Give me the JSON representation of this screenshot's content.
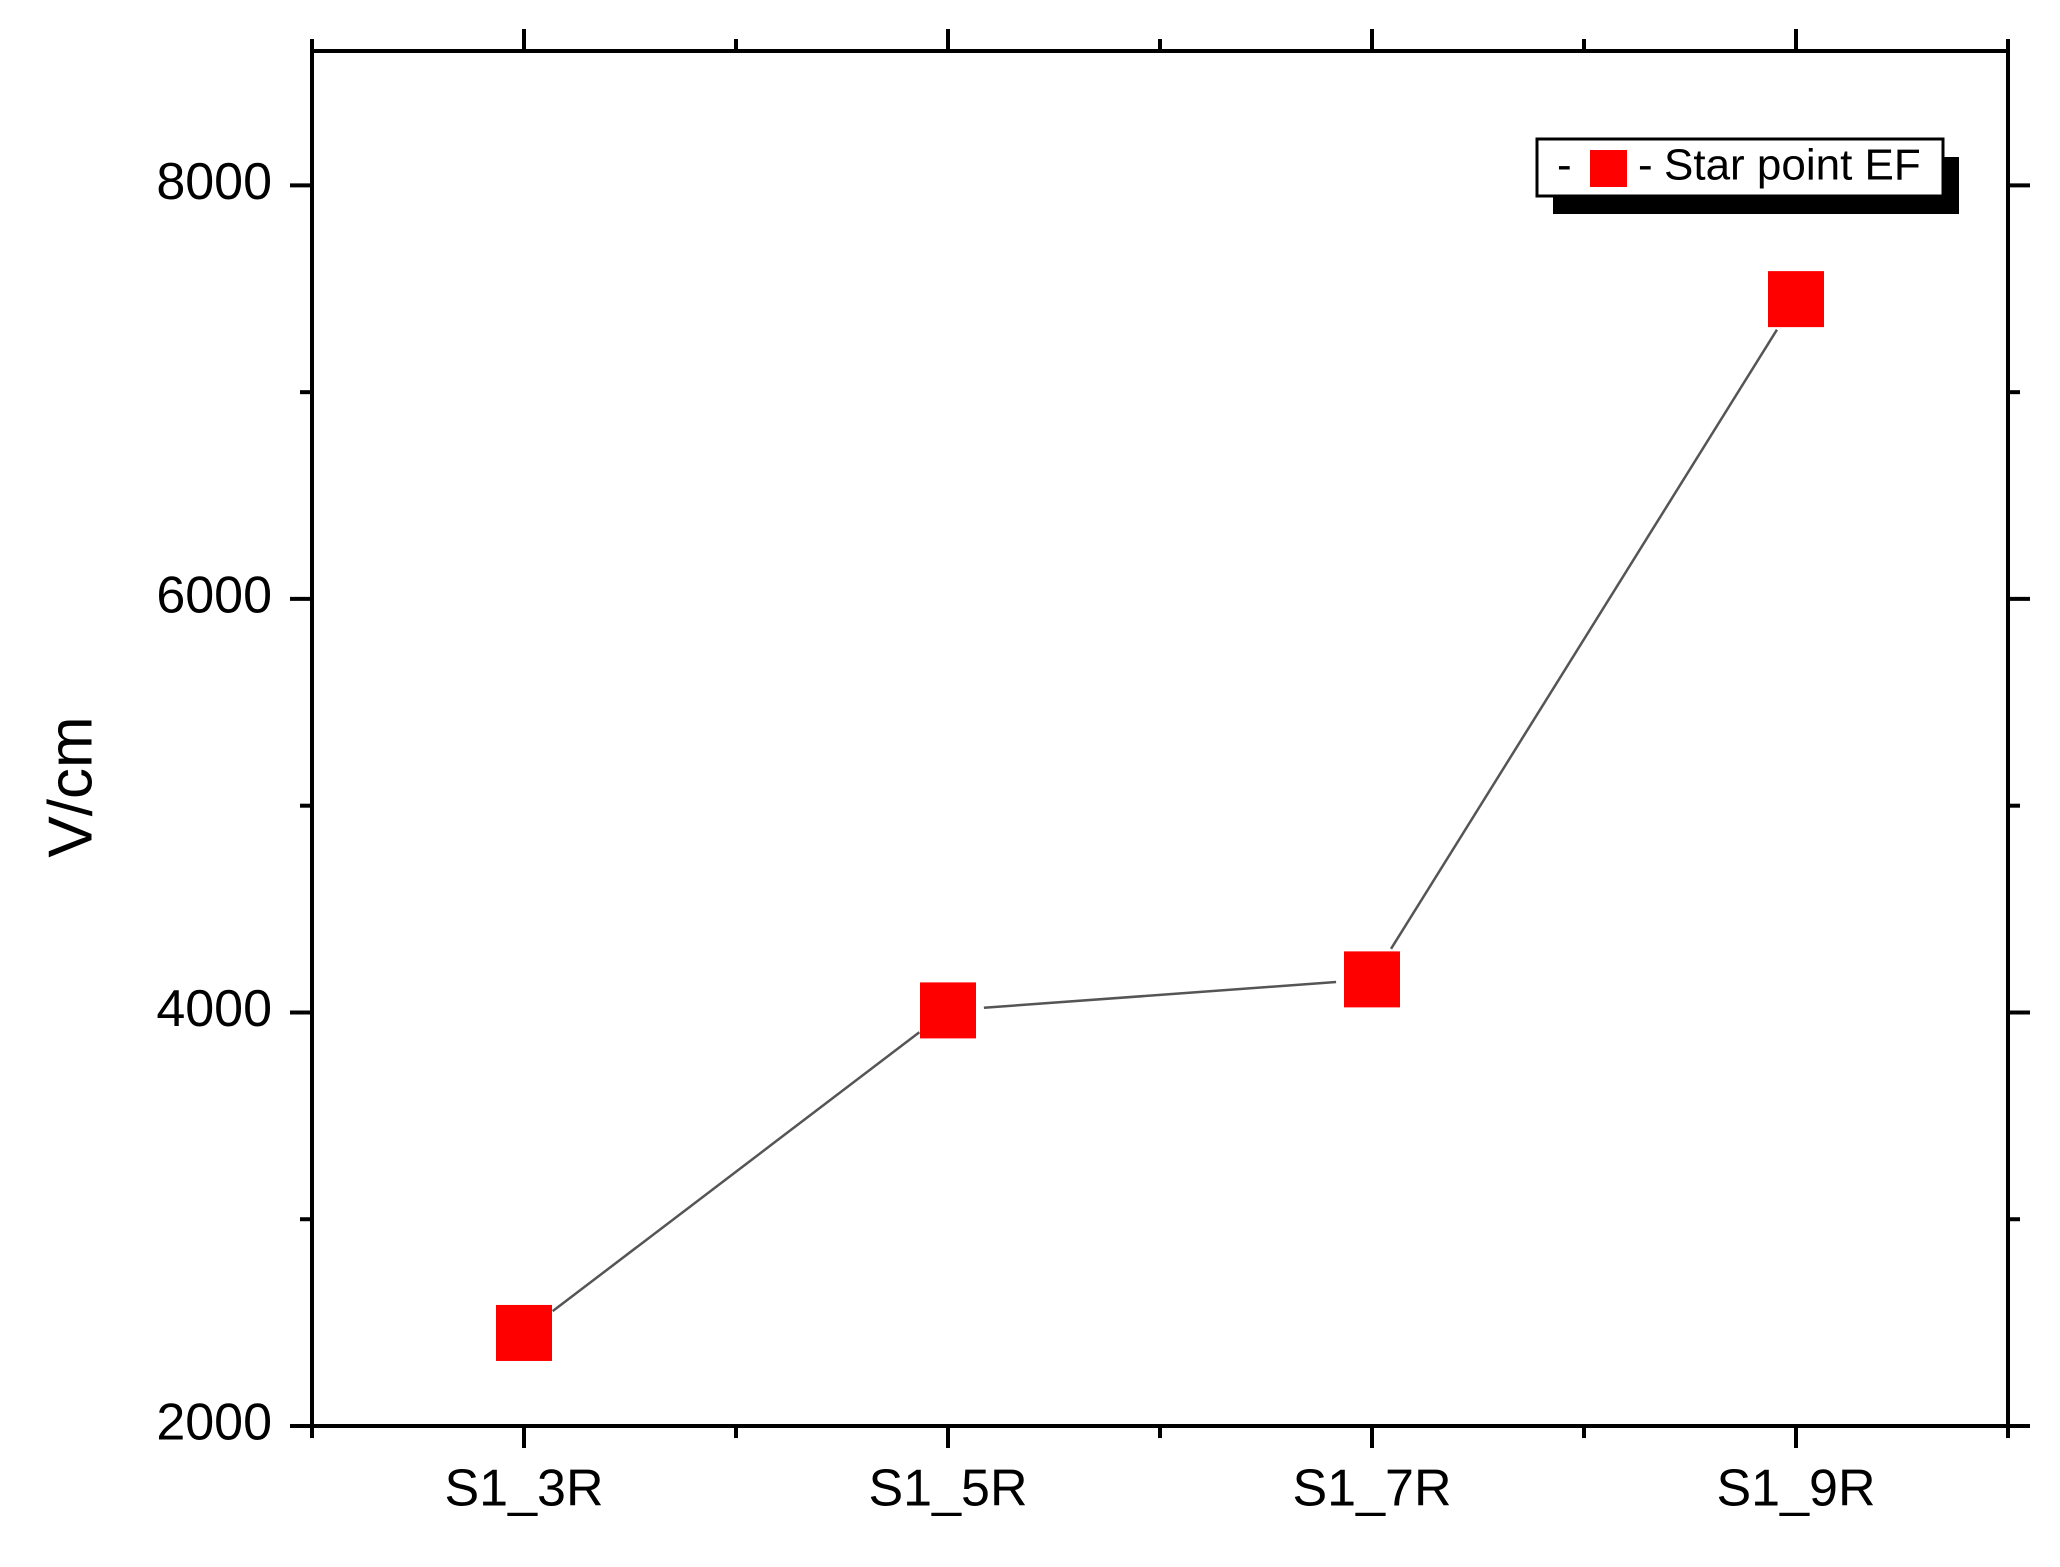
{
  "chart_data": {
    "type": "line",
    "categories": [
      "S1_3R",
      "S1_5R",
      "S1_7R",
      "S1_9R"
    ],
    "series": [
      {
        "name": "Star point EF",
        "values": [
          2450,
          4010,
          4160,
          7450
        ],
        "marker": "square",
        "marker_color": "#ff0000",
        "line_color": "#555555"
      }
    ],
    "xlabel": "",
    "ylabel": "V/cm",
    "ylim": [
      2000,
      8650
    ],
    "yticks": [
      2000,
      4000,
      6000,
      8000
    ],
    "legend": {
      "position": "top-right",
      "dash_left": "-",
      "dash_right": "-",
      "label": "Star point EF"
    },
    "grid": false
  }
}
